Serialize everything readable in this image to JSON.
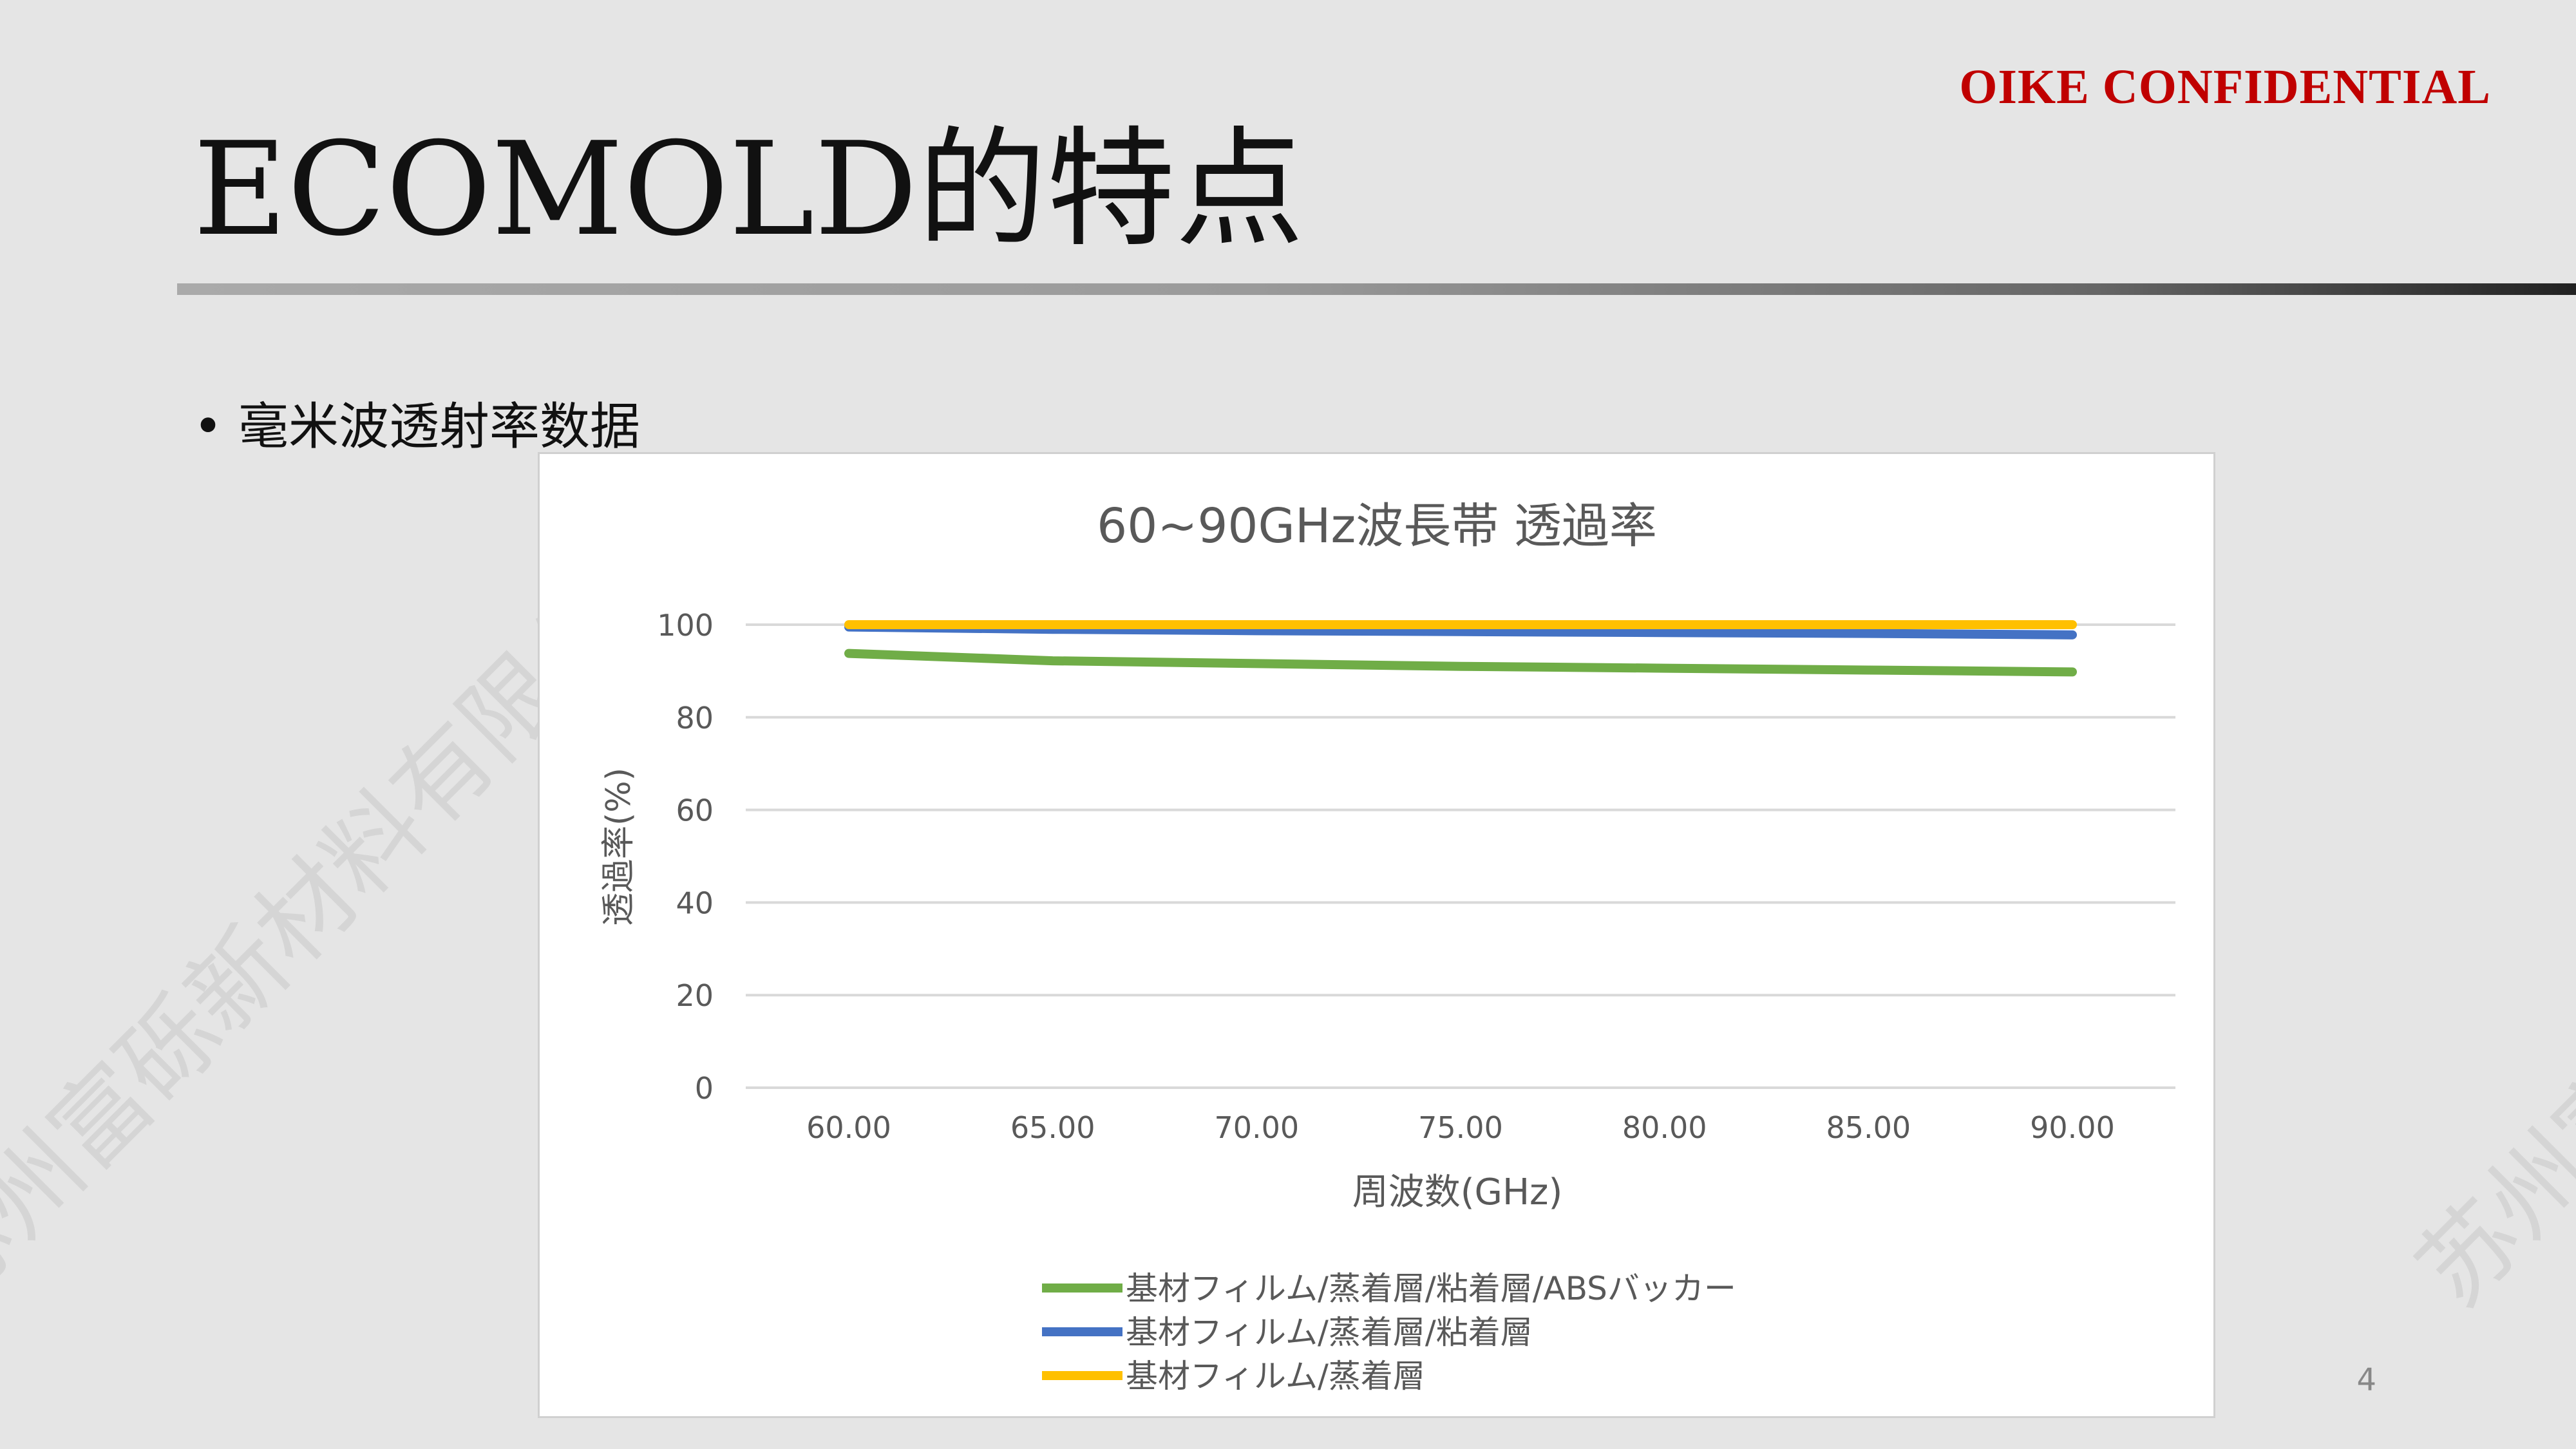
{
  "header": {
    "confidential": "OIKE CONFIDENTIAL",
    "title": "ECOMOLD的特点"
  },
  "body": {
    "bullet_marker": "•",
    "bullet_text": "毫米波透射率数据"
  },
  "page_number": "4",
  "watermark": "苏州富砾新材料有限公司",
  "colors": {
    "confidential": "#c00000",
    "series_green": "#70ad47",
    "series_blue": "#4472c4",
    "series_yellow": "#ffc000"
  },
  "chart_data": {
    "type": "line",
    "title": "60~90GHz波長帯 透過率",
    "xlabel": "周波数(GHz)",
    "ylabel": "透過率(%)",
    "categories": [
      "60.00",
      "65.00",
      "70.00",
      "75.00",
      "80.00",
      "85.00",
      "90.00"
    ],
    "x": [
      60,
      65,
      70,
      75,
      80,
      85,
      90
    ],
    "ylim": [
      0,
      100
    ],
    "yticks": [
      "0",
      "20",
      "40",
      "60",
      "80",
      "100"
    ],
    "grid": true,
    "legend_position": "bottom",
    "series": [
      {
        "name": "基材フィルム/蒸着層/粘着層/ABSバッカー",
        "color": "#70ad47",
        "values": [
          93.8,
          92.2,
          91.6,
          91.0,
          90.6,
          90.2,
          89.8
        ]
      },
      {
        "name": "基材フィルム/蒸着層/粘着層",
        "color": "#4472c4",
        "values": [
          99.5,
          99.0,
          98.7,
          98.5,
          98.3,
          98.1,
          97.8
        ]
      },
      {
        "name": "基材フィルム/蒸着層",
        "color": "#ffc000",
        "values": [
          100.0,
          100.0,
          100.0,
          100.0,
          100.0,
          100.0,
          100.0
        ]
      }
    ]
  }
}
